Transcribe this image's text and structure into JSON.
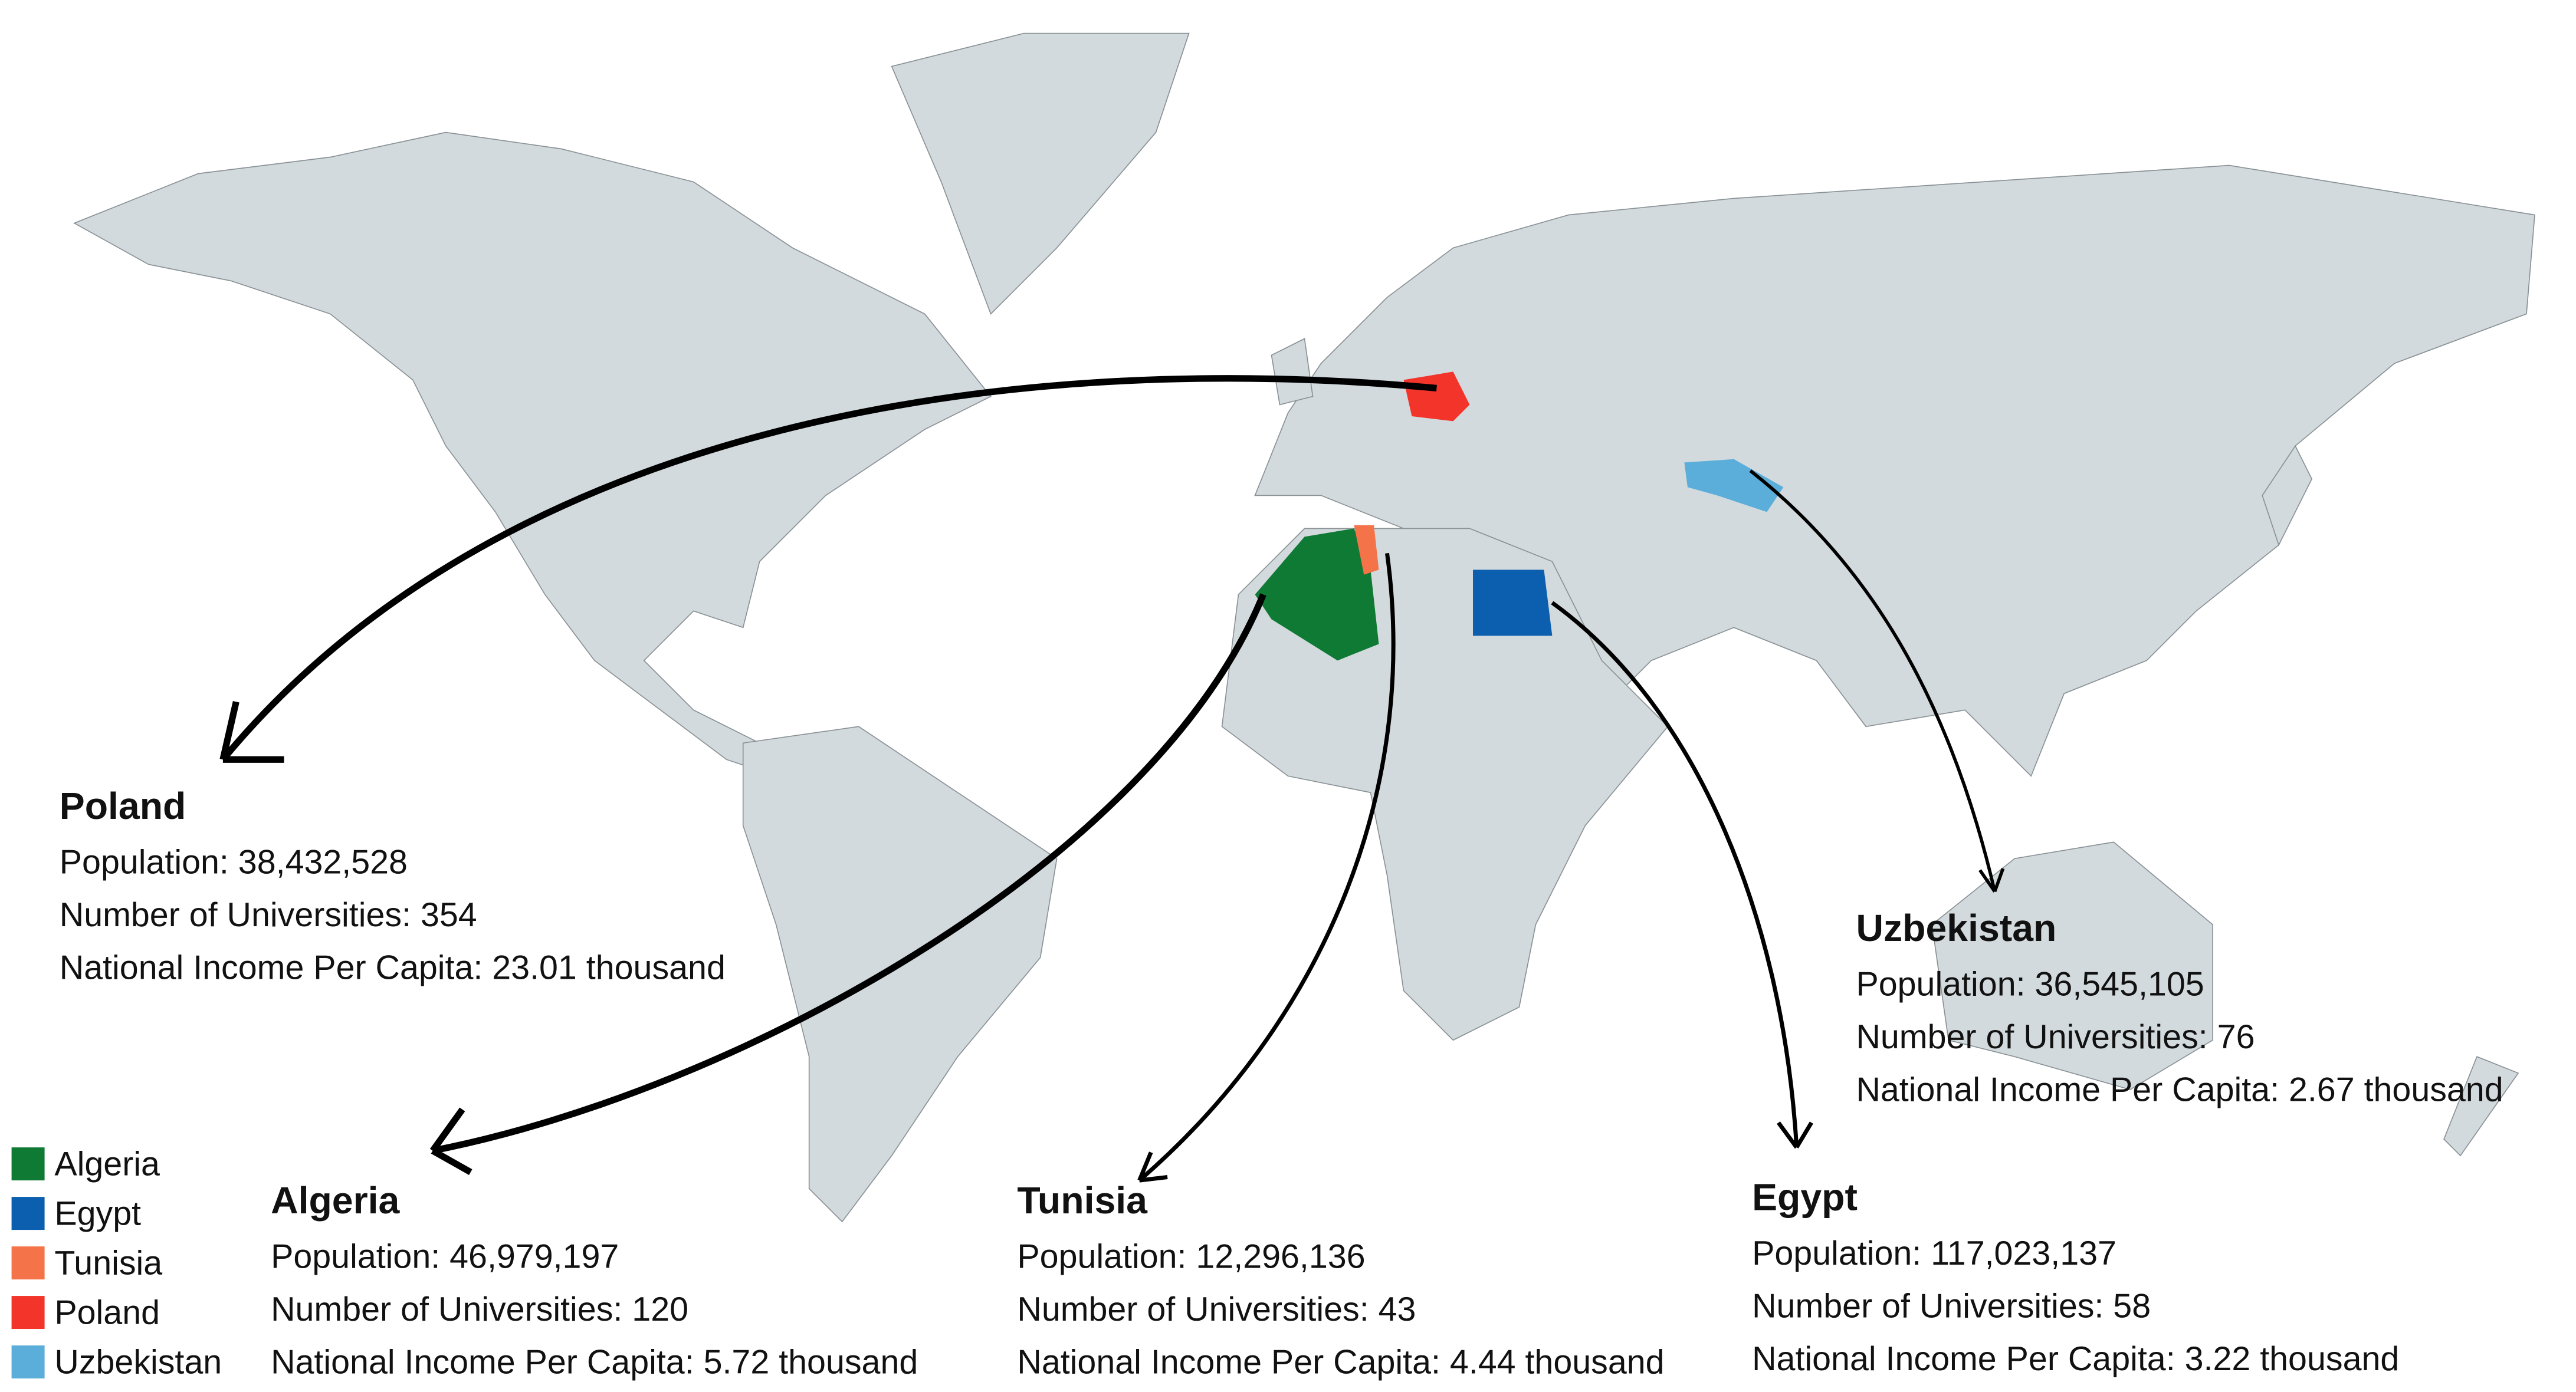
{
  "countries": [
    {
      "name": "Poland",
      "color": "#f2342a",
      "population": "Population: 38,432,528",
      "universities": "Number of Universities: 354",
      "income": "National Income Per Capita: 23.01 thousand"
    },
    {
      "name": "Algeria",
      "color": "#0e7a34",
      "population": "Population: 46,979,197",
      "universities": "Number of Universities: 120",
      "income": "National Income Per Capita: 5.72 thousand"
    },
    {
      "name": "Tunisia",
      "color": "#f57348",
      "population": "Population: 12,296,136",
      "universities": "Number of Universities: 43",
      "income": "National Income Per Capita: 4.44 thousand"
    },
    {
      "name": "Egypt",
      "color": "#0b5fae",
      "population": "Population: 117,023,137",
      "universities": "Number of Universities: 58",
      "income": "National Income Per Capita: 3.22 thousand"
    },
    {
      "name": "Uzbekistan",
      "color": "#5aaed9",
      "population": "Population: 36,545,105",
      "universities": "Number of Universities: 76",
      "income": "National Income Per Capita: 2.67 thousand"
    }
  ],
  "legend": [
    1,
    3,
    2,
    0,
    4
  ]
}
